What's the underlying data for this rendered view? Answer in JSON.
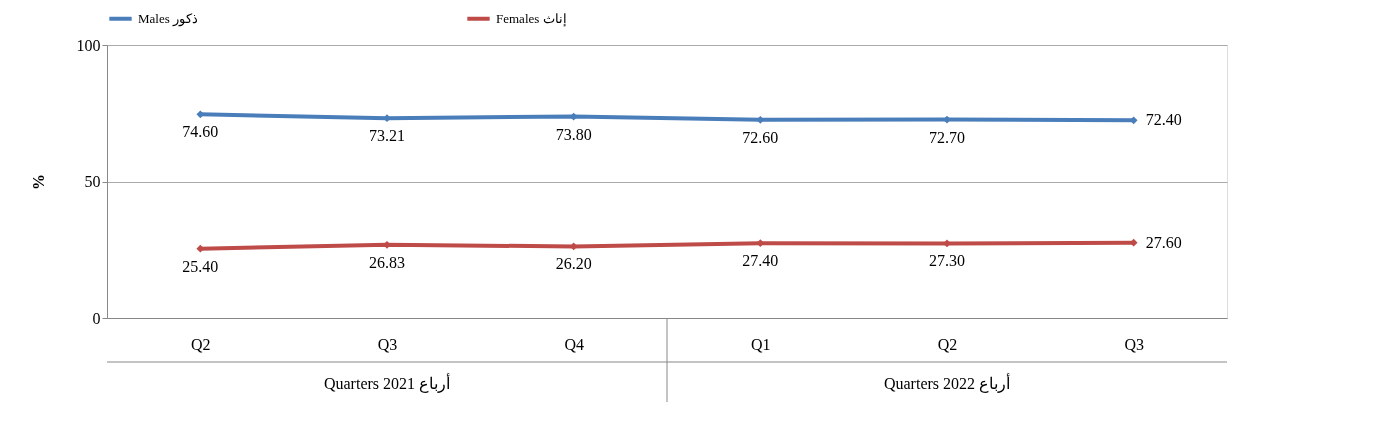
{
  "chart_data": {
    "type": "line",
    "categories": [
      "Q2",
      "Q3",
      "Q4",
      "Q1",
      "Q2",
      "Q3"
    ],
    "ylabel": "%",
    "ylim": [
      0,
      100
    ],
    "yticks": [
      0,
      50,
      100
    ],
    "grid": "y",
    "legend": "top",
    "marker": "diamond",
    "line_style": "solid",
    "annotations": [
      "Quarters 2021 أرباع",
      "Quarters 2022 أرباع"
    ],
    "series": [
      {
        "name": "Males ذكور",
        "color": "#4a7ebb",
        "values": [
          74.6,
          73.21,
          73.8,
          72.6,
          72.7,
          72.4
        ],
        "value_labels": [
          "74.60",
          "73.21",
          "73.80",
          "72.60",
          "72.70",
          "72.40"
        ]
      },
      {
        "name": "Females إناث",
        "color": "#be4b48",
        "values": [
          25.4,
          26.83,
          26.2,
          27.4,
          27.3,
          27.6
        ],
        "value_labels": [
          "25.40",
          "26.83",
          "26.20",
          "27.40",
          "27.30",
          "27.60"
        ]
      }
    ]
  }
}
